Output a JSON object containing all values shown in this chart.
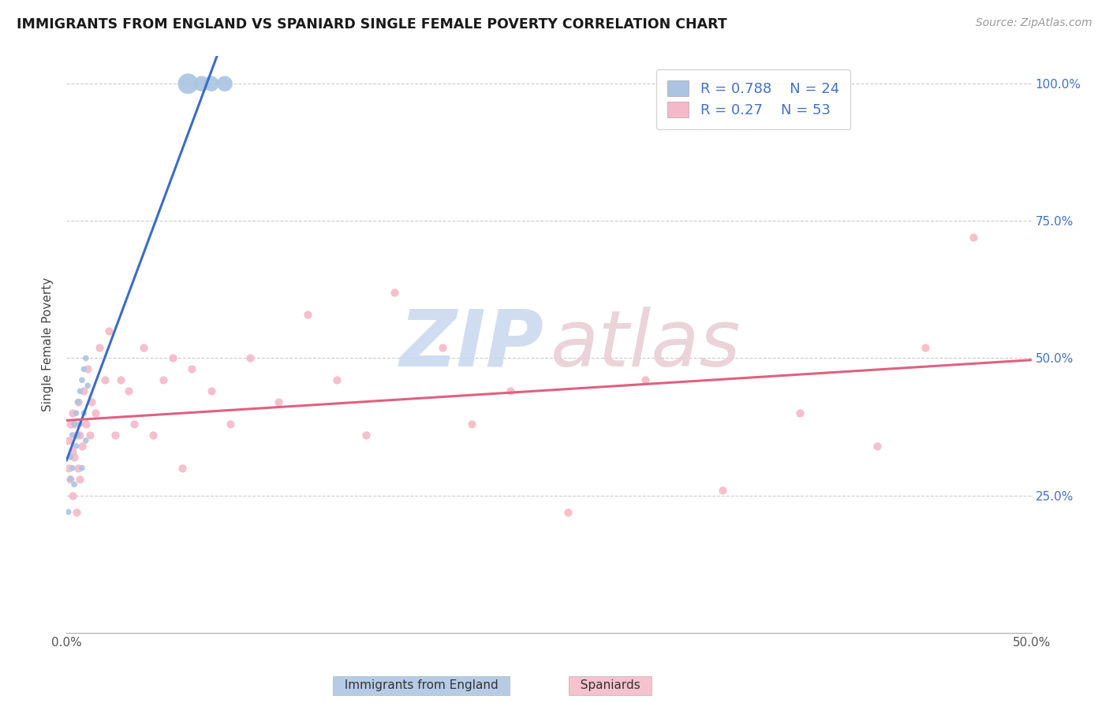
{
  "title": "IMMIGRANTS FROM ENGLAND VS SPANIARD SINGLE FEMALE POVERTY CORRELATION CHART",
  "source": "Source: ZipAtlas.com",
  "ylabel": "Single Female Poverty",
  "xlim": [
    0.0,
    0.5
  ],
  "ylim": [
    0.0,
    1.05
  ],
  "england_R": 0.788,
  "england_N": 24,
  "spaniard_R": 0.27,
  "spaniard_N": 53,
  "england_color": "#aac4e2",
  "spaniard_color": "#f5b8c8",
  "england_line_color": "#3b6cc7",
  "spaniard_line_color": "#e06080",
  "england_x": [
    0.001,
    0.002,
    0.002,
    0.003,
    0.003,
    0.004,
    0.004,
    0.005,
    0.005,
    0.006,
    0.006,
    0.007,
    0.007,
    0.008,
    0.008,
    0.009,
    0.009,
    0.01,
    0.01,
    0.011,
    0.063,
    0.07,
    0.075,
    0.082
  ],
  "england_y": [
    0.22,
    0.28,
    0.32,
    0.3,
    0.36,
    0.27,
    0.38,
    0.34,
    0.4,
    0.36,
    0.42,
    0.38,
    0.44,
    0.3,
    0.46,
    0.4,
    0.48,
    0.35,
    0.5,
    0.45,
    1.0,
    1.0,
    1.0,
    1.0
  ],
  "england_size": [
    30,
    30,
    30,
    30,
    30,
    30,
    30,
    30,
    30,
    30,
    30,
    30,
    30,
    30,
    30,
    30,
    30,
    30,
    30,
    30,
    350,
    200,
    200,
    200
  ],
  "spaniard_x": [
    0.001,
    0.001,
    0.002,
    0.002,
    0.003,
    0.003,
    0.003,
    0.004,
    0.004,
    0.005,
    0.005,
    0.006,
    0.006,
    0.007,
    0.007,
    0.008,
    0.009,
    0.01,
    0.011,
    0.012,
    0.013,
    0.015,
    0.017,
    0.02,
    0.022,
    0.025,
    0.028,
    0.032,
    0.035,
    0.04,
    0.045,
    0.05,
    0.055,
    0.06,
    0.065,
    0.075,
    0.085,
    0.095,
    0.11,
    0.125,
    0.14,
    0.155,
    0.17,
    0.195,
    0.21,
    0.23,
    0.26,
    0.3,
    0.34,
    0.38,
    0.42,
    0.445,
    0.47
  ],
  "spaniard_y": [
    0.3,
    0.35,
    0.28,
    0.38,
    0.25,
    0.33,
    0.4,
    0.32,
    0.38,
    0.22,
    0.36,
    0.3,
    0.42,
    0.28,
    0.36,
    0.34,
    0.44,
    0.38,
    0.48,
    0.36,
    0.42,
    0.4,
    0.52,
    0.46,
    0.55,
    0.36,
    0.46,
    0.44,
    0.38,
    0.52,
    0.36,
    0.46,
    0.5,
    0.3,
    0.48,
    0.44,
    0.38,
    0.5,
    0.42,
    0.58,
    0.46,
    0.36,
    0.62,
    0.52,
    0.38,
    0.44,
    0.22,
    0.46,
    0.26,
    0.4,
    0.34,
    0.52,
    0.72
  ],
  "spaniard_size": 55,
  "ytick_positions": [
    0.25,
    0.5,
    0.75,
    1.0
  ],
  "ytick_labels_right": [
    "25.0%",
    "50.0%",
    "75.0%",
    "100.0%"
  ]
}
